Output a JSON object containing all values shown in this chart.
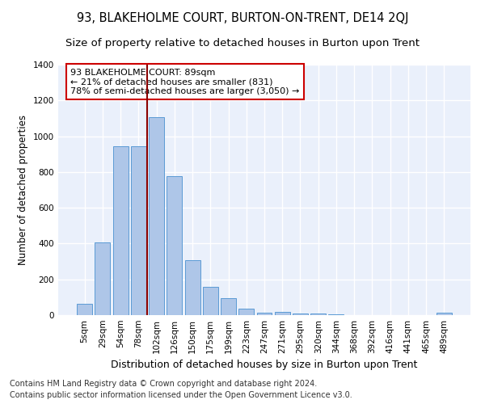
{
  "title": "93, BLAKEHOLME COURT, BURTON-ON-TRENT, DE14 2QJ",
  "subtitle": "Size of property relative to detached houses in Burton upon Trent",
  "xlabel": "Distribution of detached houses by size in Burton upon Trent",
  "ylabel": "Number of detached properties",
  "categories": [
    "5sqm",
    "29sqm",
    "54sqm",
    "78sqm",
    "102sqm",
    "126sqm",
    "150sqm",
    "175sqm",
    "199sqm",
    "223sqm",
    "247sqm",
    "271sqm",
    "295sqm",
    "320sqm",
    "344sqm",
    "368sqm",
    "392sqm",
    "416sqm",
    "441sqm",
    "465sqm",
    "489sqm"
  ],
  "values": [
    65,
    405,
    945,
    945,
    1105,
    775,
    305,
    160,
    97,
    35,
    15,
    18,
    8,
    8,
    3,
    0,
    0,
    0,
    0,
    0,
    12
  ],
  "bar_color": "#aec6e8",
  "bar_edge_color": "#5b9bd5",
  "vline_color": "#8b0000",
  "vline_x": 3.5,
  "annotation_text": "93 BLAKEHOLME COURT: 89sqm\n← 21% of detached houses are smaller (831)\n78% of semi-detached houses are larger (3,050) →",
  "annotation_box_facecolor": "#ffffff",
  "annotation_box_edgecolor": "#cc0000",
  "ylim": [
    0,
    1400
  ],
  "yticks": [
    0,
    200,
    400,
    600,
    800,
    1000,
    1200,
    1400
  ],
  "footer1": "Contains HM Land Registry data © Crown copyright and database right 2024.",
  "footer2": "Contains public sector information licensed under the Open Government Licence v3.0.",
  "bg_color": "#eaf0fb",
  "grid_color": "#ffffff",
  "fig_facecolor": "#ffffff",
  "title_fontsize": 10.5,
  "subtitle_fontsize": 9.5,
  "xlabel_fontsize": 9,
  "ylabel_fontsize": 8.5,
  "tick_fontsize": 7.5,
  "annotation_fontsize": 8,
  "footer_fontsize": 7
}
